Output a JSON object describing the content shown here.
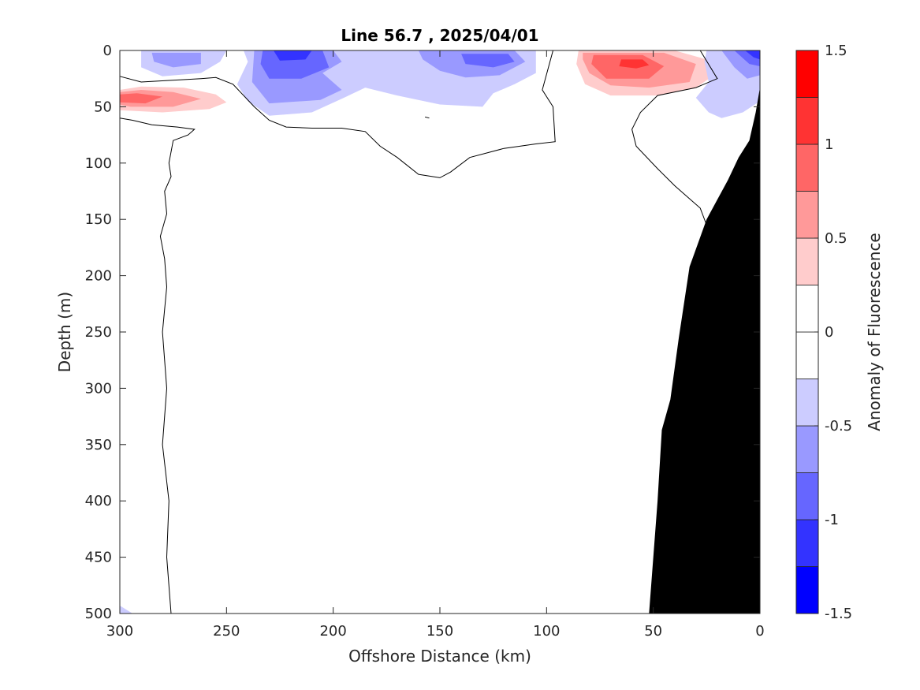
{
  "chart_data": {
    "type": "contour",
    "title": "Line 56.7 , 2025/04/01",
    "xlabel": "Offshore Distance (km)",
    "ylabel": "Depth (m)",
    "xlim": [
      300,
      0
    ],
    "ylim": [
      500,
      0
    ],
    "x_reversed": true,
    "y_reversed": true,
    "x_ticks": [
      300,
      250,
      200,
      150,
      100,
      50,
      0
    ],
    "y_ticks": [
      0,
      50,
      100,
      150,
      200,
      250,
      300,
      350,
      400,
      450,
      500
    ],
    "colorbar": {
      "label": "Anomaly of Fluorescence",
      "range": [
        -1.5,
        1.5
      ],
      "ticks": [
        -1.5,
        -1,
        -0.5,
        0,
        0.5,
        1,
        1.5
      ],
      "tick_labels": [
        "-1.5",
        "-1",
        "-0.5",
        "0",
        "0.5",
        "1",
        "1.5"
      ],
      "levels": [
        {
          "from": -1.5,
          "to": -1.25,
          "color": "#0000ff"
        },
        {
          "from": -1.25,
          "to": -1.0,
          "color": "#3333ff"
        },
        {
          "from": -1.0,
          "to": -0.75,
          "color": "#6666ff"
        },
        {
          "from": -0.75,
          "to": -0.5,
          "color": "#9999ff"
        },
        {
          "from": -0.5,
          "to": -0.25,
          "color": "#ccccff"
        },
        {
          "from": -0.25,
          "to": 0.0,
          "color": "#ffffff"
        },
        {
          "from": 0.0,
          "to": 0.25,
          "color": "#ffffff"
        },
        {
          "from": 0.25,
          "to": 0.5,
          "color": "#ffcccc"
        },
        {
          "from": 0.5,
          "to": 0.75,
          "color": "#ff9999"
        },
        {
          "from": 0.75,
          "to": 1.0,
          "color": "#ff6666"
        },
        {
          "from": 1.0,
          "to": 1.25,
          "color": "#ff3333"
        },
        {
          "from": 1.25,
          "to": 1.5,
          "color": "#ff0000"
        }
      ]
    },
    "anomaly_patches": [
      {
        "level": 0.5,
        "color": "#ffcccc",
        "points": [
          [
            300,
            35
          ],
          [
            290,
            32
          ],
          [
            270,
            33
          ],
          [
            255,
            39
          ],
          [
            250,
            46
          ],
          [
            258,
            52
          ],
          [
            280,
            55
          ],
          [
            300,
            53
          ]
        ]
      },
      {
        "level": 0.75,
        "color": "#ff9999",
        "points": [
          [
            300,
            37
          ],
          [
            290,
            35
          ],
          [
            275,
            37
          ],
          [
            262,
            43
          ],
          [
            275,
            50
          ],
          [
            295,
            50
          ],
          [
            300,
            48
          ]
        ]
      },
      {
        "level": 1.0,
        "color": "#ff6666",
        "points": [
          [
            300,
            39
          ],
          [
            292,
            38
          ],
          [
            280,
            41
          ],
          [
            288,
            47
          ],
          [
            300,
            46
          ]
        ]
      },
      {
        "level": 0.5,
        "color": "#ffcccc",
        "points": [
          [
            85,
            0
          ],
          [
            40,
            0
          ],
          [
            25,
            8
          ],
          [
            20,
            20
          ],
          [
            30,
            33
          ],
          [
            48,
            40
          ],
          [
            70,
            40
          ],
          [
            82,
            30
          ],
          [
            86,
            12
          ]
        ]
      },
      {
        "level": 0.75,
        "color": "#ff9999",
        "points": [
          [
            83,
            2
          ],
          [
            45,
            2
          ],
          [
            30,
            12
          ],
          [
            33,
            28
          ],
          [
            52,
            33
          ],
          [
            70,
            31
          ],
          [
            80,
            20
          ],
          [
            83,
            8
          ]
        ]
      },
      {
        "level": 1.0,
        "color": "#ff6666",
        "points": [
          [
            78,
            4
          ],
          [
            55,
            4
          ],
          [
            45,
            14
          ],
          [
            52,
            25
          ],
          [
            72,
            25
          ],
          [
            79,
            12
          ]
        ]
      },
      {
        "level": 1.25,
        "color": "#ff3333",
        "points": [
          [
            65,
            8
          ],
          [
            55,
            8
          ],
          [
            52,
            13
          ],
          [
            58,
            16
          ],
          [
            66,
            14
          ]
        ]
      },
      {
        "level": -0.5,
        "color": "#ccccff",
        "points": [
          [
            290,
            0
          ],
          [
            250,
            0
          ],
          [
            253,
            10
          ],
          [
            262,
            20
          ],
          [
            280,
            23
          ],
          [
            290,
            15
          ]
        ]
      },
      {
        "level": -0.75,
        "color": "#9999ff",
        "points": [
          [
            285,
            2
          ],
          [
            262,
            2
          ],
          [
            262,
            12
          ],
          [
            275,
            15
          ],
          [
            284,
            10
          ]
        ]
      },
      {
        "level": -0.5,
        "color": "#ccccff",
        "points": [
          [
            242,
            0
          ],
          [
            160,
            0
          ],
          [
            130,
            0
          ],
          [
            105,
            0
          ],
          [
            105,
            20
          ],
          [
            115,
            30
          ],
          [
            125,
            38
          ],
          [
            130,
            50
          ],
          [
            150,
            48
          ],
          [
            170,
            40
          ],
          [
            185,
            33
          ],
          [
            195,
            42
          ],
          [
            210,
            55
          ],
          [
            230,
            58
          ],
          [
            240,
            45
          ],
          [
            245,
            30
          ],
          [
            240,
            10
          ]
        ]
      },
      {
        "level": -0.75,
        "color": "#9999ff",
        "points": [
          [
            237,
            0
          ],
          [
            200,
            0
          ],
          [
            196,
            10
          ],
          [
            205,
            20
          ],
          [
            196,
            35
          ],
          [
            206,
            44
          ],
          [
            230,
            47
          ],
          [
            238,
            28
          ]
        ]
      },
      {
        "level": -1.0,
        "color": "#6666ff",
        "points": [
          [
            233,
            0
          ],
          [
            205,
            0
          ],
          [
            202,
            15
          ],
          [
            215,
            25
          ],
          [
            230,
            25
          ],
          [
            234,
            12
          ]
        ]
      },
      {
        "level": -1.25,
        "color": "#3333ff",
        "points": [
          [
            228,
            0
          ],
          [
            210,
            0
          ],
          [
            213,
            8
          ],
          [
            225,
            9
          ]
        ]
      },
      {
        "level": -0.75,
        "color": "#9999ff",
        "points": [
          [
            160,
            0
          ],
          [
            115,
            0
          ],
          [
            110,
            10
          ],
          [
            122,
            22
          ],
          [
            138,
            24
          ],
          [
            150,
            18
          ],
          [
            158,
            8
          ]
        ]
      },
      {
        "level": -1.0,
        "color": "#6666ff",
        "points": [
          [
            140,
            3
          ],
          [
            118,
            3
          ],
          [
            115,
            10
          ],
          [
            125,
            15
          ],
          [
            138,
            12
          ]
        ]
      },
      {
        "level": -0.5,
        "color": "#ccccff",
        "points": [
          [
            25,
            0
          ],
          [
            2,
            0
          ],
          [
            0,
            8
          ],
          [
            0,
            45
          ],
          [
            8,
            55
          ],
          [
            18,
            60
          ],
          [
            24,
            55
          ],
          [
            30,
            42
          ],
          [
            24,
            28
          ],
          [
            26,
            10
          ]
        ]
      },
      {
        "level": -0.75,
        "color": "#9999ff",
        "points": [
          [
            18,
            0
          ],
          [
            3,
            0
          ],
          [
            0,
            6
          ],
          [
            0,
            22
          ],
          [
            6,
            25
          ],
          [
            12,
            15
          ]
        ]
      },
      {
        "level": -1.0,
        "color": "#6666ff",
        "points": [
          [
            12,
            0
          ],
          [
            2,
            0
          ],
          [
            0,
            3
          ],
          [
            0,
            14
          ],
          [
            5,
            12
          ]
        ]
      },
      {
        "level": -1.25,
        "color": "#3333ff",
        "points": [
          [
            7,
            0
          ],
          [
            0,
            0
          ],
          [
            0,
            8
          ],
          [
            3,
            6
          ]
        ]
      },
      {
        "level": -0.5,
        "color": "#ccccff",
        "points": [
          [
            300,
            493
          ],
          [
            300,
            500
          ],
          [
            294,
            500
          ]
        ]
      }
    ],
    "zero_contours": [
      {
        "points": [
          [
            300,
            60
          ],
          [
            294,
            62
          ],
          [
            285,
            66
          ],
          [
            273,
            68
          ],
          [
            265,
            70
          ],
          [
            268,
            75
          ],
          [
            275,
            80
          ],
          [
            277,
            100
          ],
          [
            276,
            112
          ],
          [
            279,
            125
          ],
          [
            278,
            145
          ],
          [
            281,
            165
          ],
          [
            279,
            185
          ],
          [
            278,
            210
          ],
          [
            280,
            250
          ],
          [
            278,
            300
          ],
          [
            280,
            350
          ],
          [
            277,
            400
          ],
          [
            278,
            450
          ],
          [
            276,
            500
          ]
        ]
      },
      {
        "points": [
          [
            300,
            23
          ],
          [
            290,
            28
          ],
          [
            262,
            25
          ],
          [
            255,
            24
          ],
          [
            247,
            30
          ],
          [
            237,
            50
          ],
          [
            230,
            62
          ],
          [
            222,
            68
          ],
          [
            210,
            69
          ],
          [
            196,
            69
          ],
          [
            185,
            72
          ],
          [
            178,
            85
          ],
          [
            170,
            95
          ],
          [
            160,
            110
          ],
          [
            150,
            113
          ],
          [
            145,
            108
          ],
          [
            136,
            95
          ],
          [
            120,
            87
          ],
          [
            105,
            83
          ],
          [
            96,
            81
          ],
          [
            97,
            50
          ],
          [
            102,
            35
          ],
          [
            97,
            0
          ]
        ]
      },
      {
        "points": [
          [
            22,
            0
          ],
          [
            28,
            0
          ],
          [
            20,
            25
          ],
          [
            30,
            33
          ],
          [
            48,
            40
          ],
          [
            56,
            55
          ],
          [
            60,
            70
          ],
          [
            58,
            85
          ],
          [
            48,
            105
          ],
          [
            40,
            120
          ],
          [
            28,
            140
          ],
          [
            24,
            160
          ],
          [
            23,
            180
          ],
          [
            20,
            193
          ]
        ]
      },
      {
        "points": [
          [
            157,
            59
          ],
          [
            155,
            60
          ]
        ]
      }
    ],
    "bathymetry": [
      [
        0,
        33
      ],
      [
        2,
        55
      ],
      [
        5,
        80
      ],
      [
        10,
        95
      ],
      [
        15,
        115
      ],
      [
        25,
        150
      ],
      [
        33,
        192
      ],
      [
        38,
        255
      ],
      [
        42,
        310
      ],
      [
        46,
        337
      ],
      [
        48,
        400
      ],
      [
        52,
        500
      ],
      [
        0,
        500
      ]
    ]
  }
}
